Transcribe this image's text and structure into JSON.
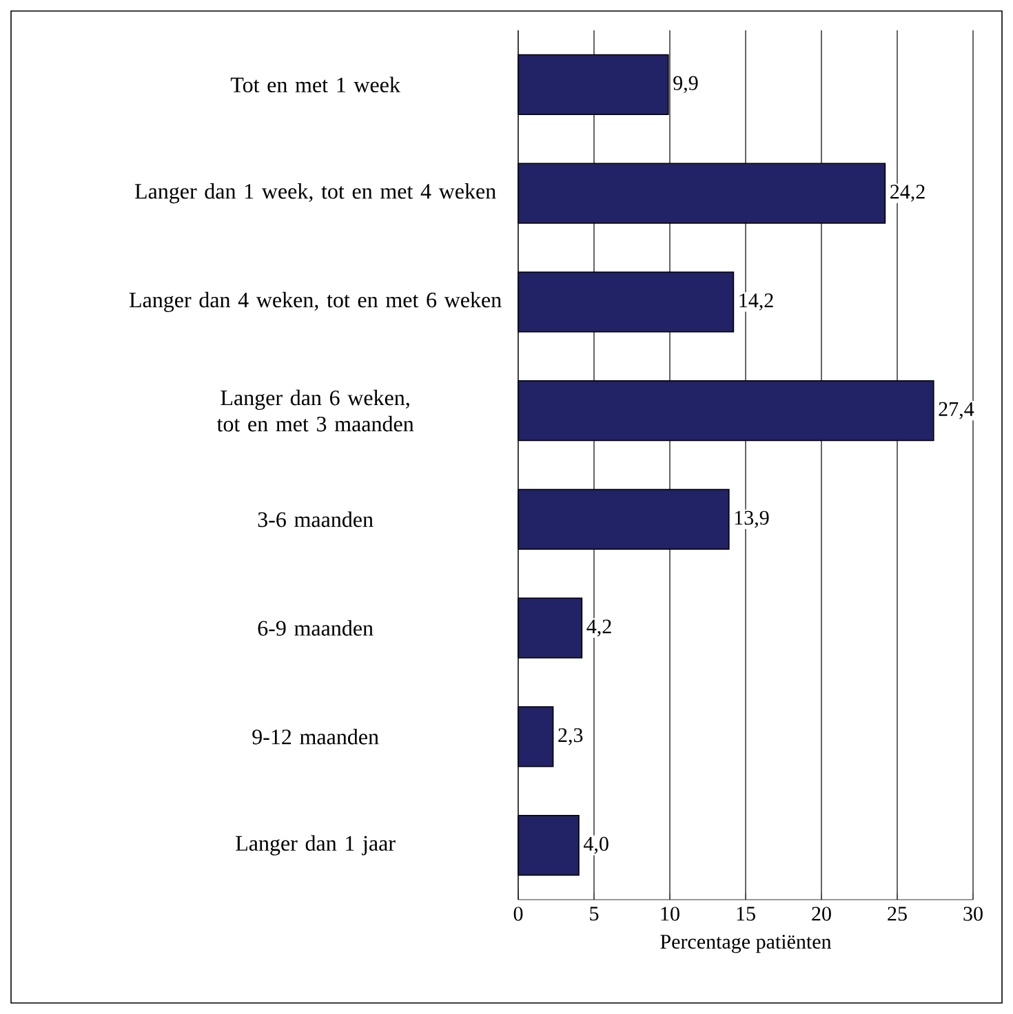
{
  "chart_data": {
    "type": "bar",
    "orientation": "horizontal",
    "categories": [
      "Tot en met 1 week",
      "Langer dan 1 week, tot en met 4 weken",
      "Langer dan 4 weken, tot en met 6 weken",
      "Langer dan 6 weken, tot en met 3 maanden",
      "3-6 maanden",
      "6-9 maanden",
      "9-12 maanden",
      "Langer dan 1 jaar"
    ],
    "values": [
      9.9,
      24.2,
      14.2,
      27.4,
      13.9,
      4.2,
      2.3,
      4.0
    ],
    "value_labels": [
      "9,9",
      "24,2",
      "14,2",
      "27,4",
      "13,9",
      "4,2",
      "2,3",
      "4,0"
    ],
    "color": "#222266",
    "xlabel": "Percentage patiënten",
    "xlim": [
      0,
      30
    ],
    "xticks": [
      0,
      5,
      10,
      15,
      20,
      25,
      30
    ],
    "grid": "x"
  }
}
